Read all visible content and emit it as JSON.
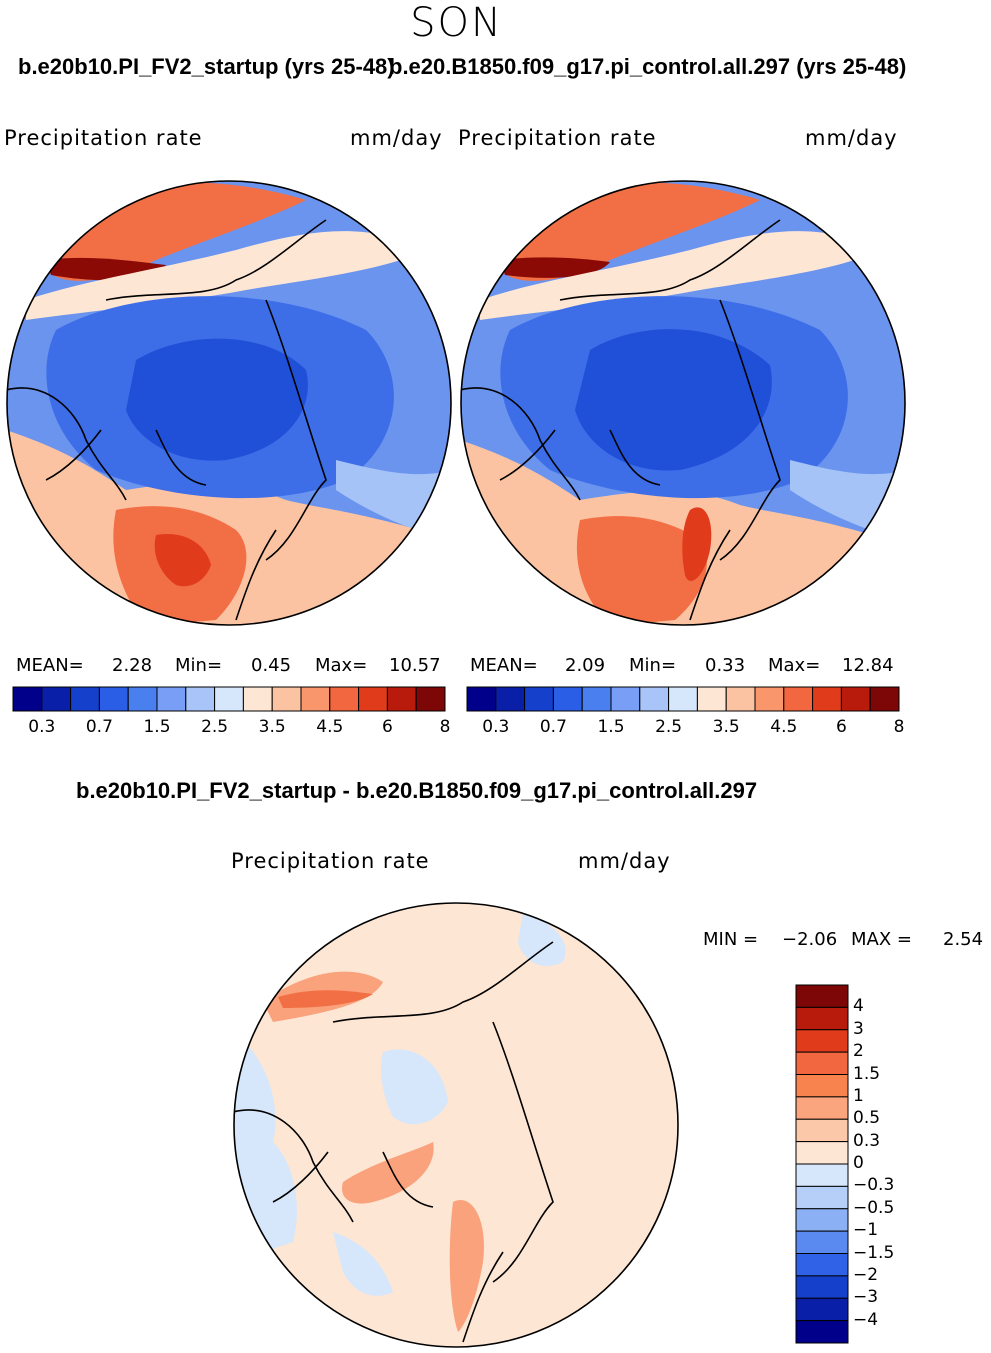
{
  "season": "SON",
  "panels": [
    {
      "title": "b.e20b10.PI_FV2_startup (yrs 25-48)",
      "variable": "Precipitation rate",
      "units": "mm/day",
      "mean_label": "MEAN=",
      "mean": "2.28",
      "min_label": "Min=",
      "min": "0.45",
      "max_label": "Max=",
      "max": "10.57"
    },
    {
      "title": "b.e20.B1850.f09_g17.pi_control.all.297 (yrs 25-48)",
      "variable": "Precipitation rate",
      "units": "mm/day",
      "mean_label": "MEAN=",
      "mean": "2.09",
      "min_label": "Min=",
      "min": "0.33",
      "max_label": "Max=",
      "max": "12.84"
    }
  ],
  "colorbar": {
    "tick_labels": [
      "0.3",
      "0.7",
      "1.5",
      "2.5",
      "3.5",
      "4.5",
      "6",
      "8"
    ],
    "colors": [
      "#00008b",
      "#0a1fa8",
      "#1440cc",
      "#2a5ee6",
      "#4a7ff0",
      "#789ff5",
      "#a8c4f8",
      "#d6e6fb",
      "#fde6d4",
      "#fcc3a3",
      "#f9966c",
      "#f2673f",
      "#e03c1c",
      "#b81a0c",
      "#7d0606"
    ]
  },
  "diff": {
    "title": "b.e20b10.PI_FV2_startup - b.e20.B1850.f09_g17.pi_control.all.297",
    "variable": "Precipitation rate",
    "units": "mm/day",
    "min_label": "MIN =",
    "min": "−2.06",
    "max_label": "MAX =",
    "max": "2.54",
    "colorbar_labels": [
      "4",
      "3",
      "2",
      "1.5",
      "1",
      "0.5",
      "0.3",
      "0",
      "−0.3",
      "−0.5",
      "−1",
      "−1.5",
      "−2",
      "−3",
      "−4"
    ],
    "colorbar_colors": [
      "#7d0606",
      "#b81a0c",
      "#e03c1c",
      "#f2673f",
      "#f9834f",
      "#faa57d",
      "#fcc8aa",
      "#fde6d4",
      "#d6e6fb",
      "#b6cff8",
      "#8bb0f4",
      "#5a8af0",
      "#2f62e6",
      "#1440cc",
      "#0a1fa8",
      "#00008b"
    ]
  },
  "map_colors": {
    "deep_blue": "#2150d8",
    "blue": "#3d6ee8",
    "mid_blue": "#6b94ef",
    "light_blue": "#a6c3f7",
    "pale_blue": "#d6e6fb",
    "peach": "#fde6d4",
    "salmon": "#f9a27c",
    "orange": "#f26f45",
    "red": "#e03c1c",
    "dark_red": "#8b0a06"
  }
}
